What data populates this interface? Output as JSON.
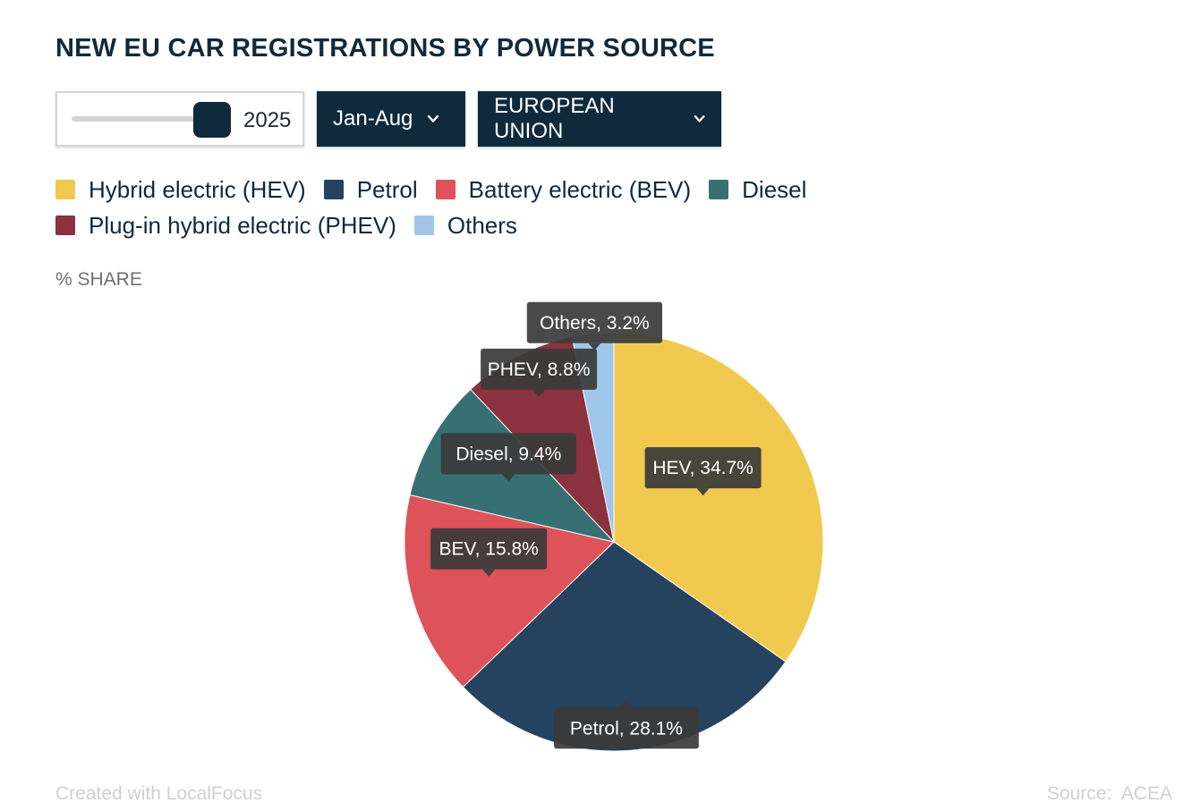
{
  "title": "NEW EU CAR REGISTRATIONS BY POWER SOURCE",
  "controls": {
    "year": "2025",
    "period": "Jan-Aug",
    "region": "EUROPEAN UNION"
  },
  "unit_label": "% SHARE",
  "footer": {
    "credit": "Created with LocalFocus",
    "source": "Source:  ACEA"
  },
  "chart_data": {
    "type": "pie",
    "legend_placement": "top-left",
    "series": [
      {
        "name": "Hybrid electric (HEV)",
        "short": "HEV",
        "value": 34.7,
        "color": "#f2c94f",
        "label": "HEV, 34.7%"
      },
      {
        "name": "Petrol",
        "short": "Petrol",
        "value": 28.1,
        "color": "#25425e",
        "label": "Petrol, 28.1%"
      },
      {
        "name": "Battery electric (BEV)",
        "short": "BEV",
        "value": 15.8,
        "color": "#de5359",
        "label": "BEV, 15.8%"
      },
      {
        "name": "Diesel",
        "short": "Diesel",
        "value": 9.4,
        "color": "#367073",
        "label": "Diesel, 9.4%"
      },
      {
        "name": "Plug-in hybrid electric (PHEV)",
        "short": "PHEV",
        "value": 8.8,
        "color": "#8b3140",
        "label": "PHEV, 8.8%"
      },
      {
        "name": "Others",
        "short": "Others",
        "value": 3.2,
        "color": "#a0c6e8",
        "label": "Others, 3.2%"
      }
    ]
  }
}
